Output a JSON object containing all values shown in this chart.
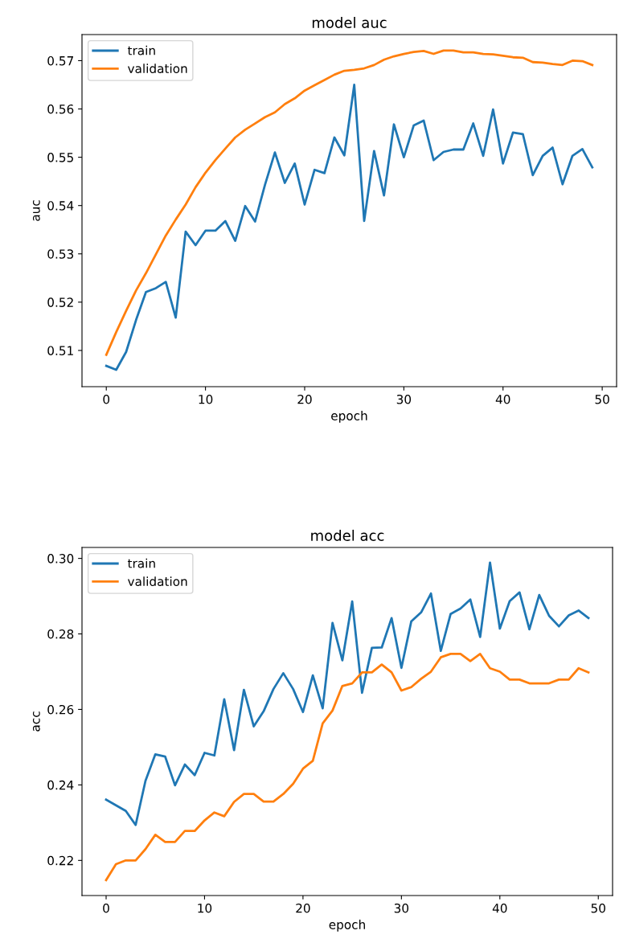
{
  "chart_data": [
    {
      "type": "line",
      "title": "model auc",
      "xlabel": "epoch",
      "ylabel": "auc",
      "x": [
        0,
        1,
        2,
        3,
        4,
        5,
        6,
        7,
        8,
        9,
        10,
        11,
        12,
        13,
        14,
        15,
        16,
        17,
        18,
        19,
        20,
        21,
        22,
        23,
        24,
        25,
        26,
        27,
        28,
        29,
        30,
        31,
        32,
        33,
        34,
        35,
        36,
        37,
        38,
        39,
        40,
        41,
        42,
        43,
        44,
        45,
        46,
        47,
        48,
        49
      ],
      "xlim": [
        -2.45,
        51.45
      ],
      "xticks": [
        0,
        10,
        20,
        30,
        40,
        50
      ],
      "ylim": [
        0.5025,
        0.5754
      ],
      "yticks": [
        0.51,
        0.52,
        0.53,
        0.54,
        0.55,
        0.56,
        0.57
      ],
      "legend": "top left",
      "grid": false,
      "series": [
        {
          "name": "train",
          "color": "#1f77b4",
          "values": [
            0.5068,
            0.506,
            0.5097,
            0.5163,
            0.5221,
            0.5229,
            0.5242,
            0.5168,
            0.5346,
            0.5318,
            0.5348,
            0.5348,
            0.5368,
            0.5327,
            0.5399,
            0.5367,
            0.5443,
            0.551,
            0.5447,
            0.5487,
            0.5402,
            0.5474,
            0.5467,
            0.5541,
            0.5504,
            0.565,
            0.5368,
            0.5513,
            0.5421,
            0.5568,
            0.55,
            0.5566,
            0.5576,
            0.5494,
            0.5511,
            0.5516,
            0.5516,
            0.557,
            0.5503,
            0.5599,
            0.5487,
            0.5551,
            0.5548,
            0.5463,
            0.5503,
            0.552,
            0.5444,
            0.5503,
            0.5517,
            0.5479
          ]
        },
        {
          "name": "validation",
          "color": "#ff7f0e",
          "values": [
            0.5091,
            0.5138,
            0.5182,
            0.5224,
            0.526,
            0.5299,
            0.5338,
            0.5371,
            0.5402,
            0.5438,
            0.5468,
            0.5494,
            0.5518,
            0.5541,
            0.5557,
            0.557,
            0.5583,
            0.5593,
            0.561,
            0.5622,
            0.5638,
            0.5649,
            0.566,
            0.5671,
            0.5679,
            0.5681,
            0.5684,
            0.5691,
            0.5702,
            0.5709,
            0.5714,
            0.5718,
            0.572,
            0.5714,
            0.5721,
            0.5721,
            0.5717,
            0.5717,
            0.5714,
            0.5713,
            0.571,
            0.5707,
            0.5706,
            0.5697,
            0.5696,
            0.5693,
            0.5691,
            0.57,
            0.5699,
            0.5691
          ]
        }
      ]
    },
    {
      "type": "line",
      "title": "model acc",
      "xlabel": "epoch",
      "ylabel": "acc",
      "x": [
        0,
        1,
        2,
        3,
        4,
        5,
        6,
        7,
        8,
        9,
        10,
        11,
        12,
        13,
        14,
        15,
        16,
        17,
        18,
        19,
        20,
        21,
        22,
        23,
        24,
        25,
        26,
        27,
        28,
        29,
        30,
        31,
        32,
        33,
        34,
        35,
        36,
        37,
        38,
        39,
        40,
        41,
        42,
        43,
        44,
        45,
        46,
        47,
        48,
        49
      ],
      "xlim": [
        -2.45,
        51.45
      ],
      "xticks": [
        0,
        10,
        20,
        30,
        40,
        50
      ],
      "ylim": [
        0.2107,
        0.3029
      ],
      "yticks": [
        {
          "value": 0.22,
          "label": "0.22"
        },
        {
          "value": 0.24,
          "label": "0.24"
        },
        {
          "value": 0.26,
          "label": "0.26"
        },
        {
          "value": 0.28,
          "label": "0.28"
        },
        {
          "value": 0.3,
          "label": "0.30"
        }
      ],
      "legend": "top left",
      "grid": false,
      "series": [
        {
          "name": "train",
          "color": "#1f77b4",
          "values": [
            0.2361,
            0.2346,
            0.2331,
            0.2294,
            0.2411,
            0.2481,
            0.2475,
            0.2399,
            0.2454,
            0.2426,
            0.2485,
            0.2478,
            0.2627,
            0.2492,
            0.2652,
            0.2555,
            0.2595,
            0.2654,
            0.2696,
            0.2654,
            0.2593,
            0.269,
            0.2603,
            0.2829,
            0.273,
            0.2886,
            0.2644,
            0.2763,
            0.2764,
            0.2842,
            0.271,
            0.2833,
            0.2857,
            0.2907,
            0.2755,
            0.2853,
            0.2867,
            0.2891,
            0.2792,
            0.2989,
            0.2814,
            0.2887,
            0.291,
            0.2812,
            0.2903,
            0.2848,
            0.282,
            0.2849,
            0.2862,
            0.2842
          ]
        },
        {
          "name": "validation",
          "color": "#ff7f0e",
          "values": [
            0.2148,
            0.219,
            0.22,
            0.22,
            0.223,
            0.2268,
            0.2249,
            0.2249,
            0.2278,
            0.2278,
            0.2306,
            0.2327,
            0.2317,
            0.2355,
            0.2376,
            0.2376,
            0.2356,
            0.2356,
            0.2376,
            0.2403,
            0.2443,
            0.2464,
            0.2563,
            0.2597,
            0.2662,
            0.2669,
            0.2698,
            0.2698,
            0.2719,
            0.2698,
            0.265,
            0.2659,
            0.2681,
            0.27,
            0.2738,
            0.2747,
            0.2747,
            0.2728,
            0.2747,
            0.2709,
            0.27,
            0.2679,
            0.2679,
            0.2669,
            0.2669,
            0.2669,
            0.2679,
            0.2679,
            0.2709,
            0.2698
          ]
        }
      ]
    }
  ]
}
